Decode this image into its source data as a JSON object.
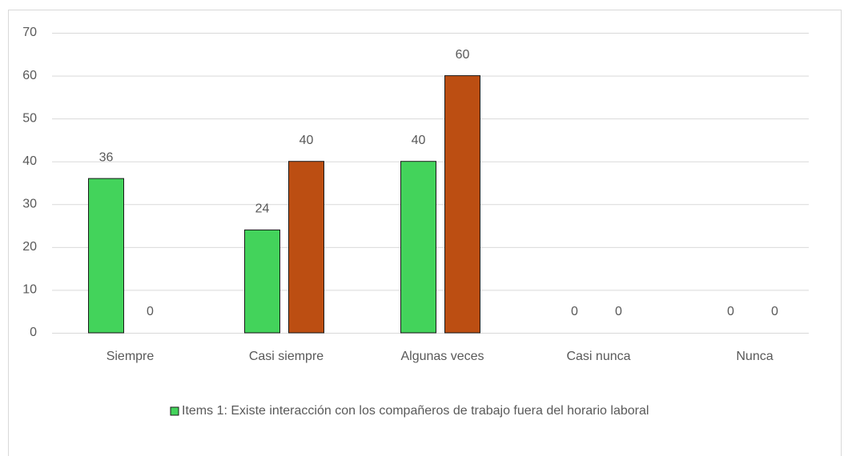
{
  "chart_data": {
    "type": "bar",
    "categories": [
      "Siempre",
      "Casi siempre",
      "Algunas veces",
      "Casi nunca",
      "Nunca"
    ],
    "series": [
      {
        "name": "Items 1: Existe interacción con los compañeros de trabajo fuera del horario laboral",
        "color": "#43d35b",
        "values": [
          36,
          24,
          40,
          0,
          0
        ]
      },
      {
        "color": "#bc4e12",
        "values": [
          0,
          40,
          60,
          0,
          0
        ]
      }
    ],
    "ylim": [
      0,
      70
    ],
    "yticks": [
      0,
      10,
      20,
      30,
      40,
      50,
      60,
      70
    ],
    "grid": true,
    "legend": "bottom"
  }
}
